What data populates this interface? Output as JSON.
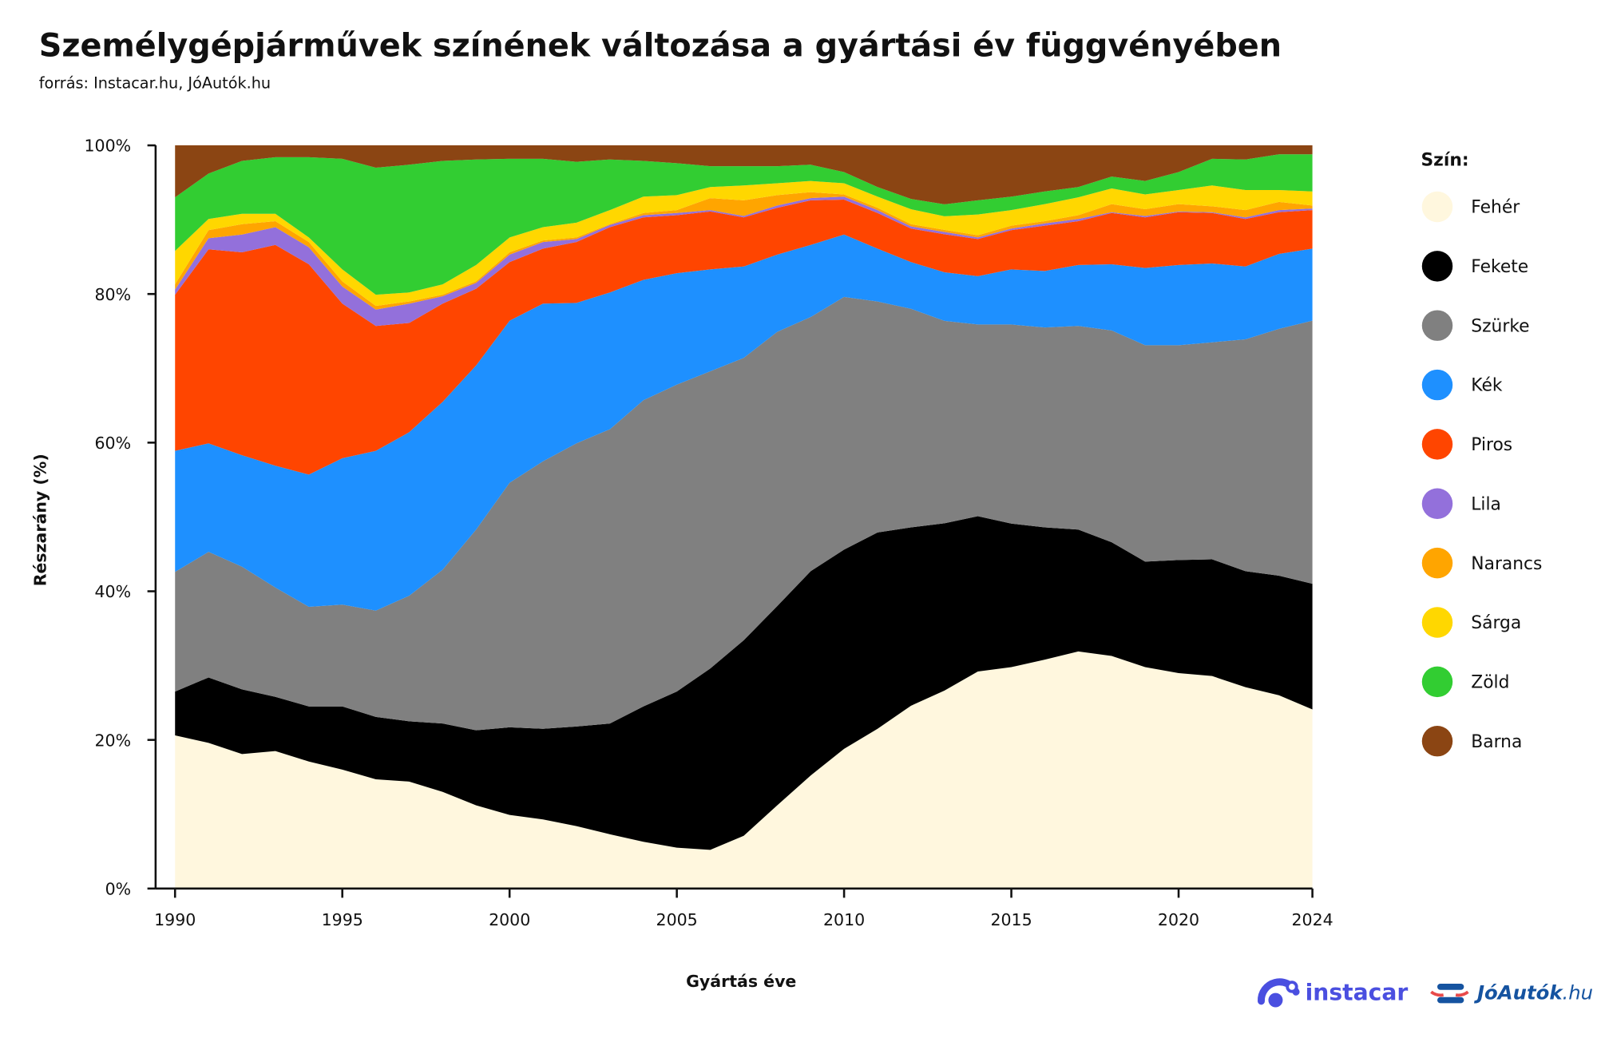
{
  "header": {
    "title": "Személygépjárművek színének változása a gyártási év függvényében",
    "source": "forrás: Instacar.hu, JóAutók.hu"
  },
  "logos": {
    "instacar": "instacar",
    "joautok": "JóAutók",
    "joautok_suffix": ".hu"
  },
  "chart_data": {
    "type": "area",
    "stacked": true,
    "normalized": true,
    "xlabel": "Gyártás éve",
    "ylabel": "Részarány (%)",
    "ylim": [
      0,
      100
    ],
    "yticks": [
      "0%",
      "20%",
      "40%",
      "60%",
      "80%",
      "100%"
    ],
    "xticks": [
      "1990",
      "1995",
      "2000",
      "2005",
      "2010",
      "2015",
      "2020",
      "2024"
    ],
    "legend_title": "Szín:",
    "legend_position": "right",
    "x": [
      1990,
      1991,
      1992,
      1993,
      1994,
      1995,
      1996,
      1997,
      1998,
      1999,
      2000,
      2001,
      2002,
      2003,
      2004,
      2005,
      2006,
      2007,
      2008,
      2009,
      2010,
      2011,
      2012,
      2013,
      2014,
      2015,
      2016,
      2017,
      2018,
      2019,
      2020,
      2021,
      2022,
      2023,
      2024
    ],
    "series": [
      {
        "name": "Fehér",
        "color": "#FFF7DE",
        "values": [
          20.6,
          19.6,
          18.1,
          18.5,
          17.1,
          16.0,
          14.7,
          14.4,
          13.0,
          11.2,
          9.9,
          9.3,
          8.4,
          7.3,
          6.3,
          5.5,
          5.2,
          7.1,
          11.2,
          15.2,
          18.8,
          21.5,
          24.6,
          26.5,
          29.2,
          29.8,
          30.8,
          31.9,
          31.3,
          29.8,
          29.0,
          28.6,
          27.1,
          26.0,
          24.1
        ]
      },
      {
        "name": "Fekete",
        "color": "#000000",
        "values": [
          5.9,
          8.8,
          8.7,
          7.3,
          7.4,
          8.5,
          8.4,
          8.1,
          9.2,
          10.1,
          11.8,
          12.2,
          13.4,
          14.9,
          18.2,
          21.0,
          24.4,
          26.3,
          26.8,
          27.5,
          26.8,
          26.4,
          24.0,
          22.4,
          20.9,
          19.3,
          17.8,
          16.4,
          15.3,
          14.2,
          15.2,
          15.7,
          15.6,
          16.1,
          16.9
        ]
      },
      {
        "name": "Szürke",
        "color": "#808080",
        "values": [
          16.1,
          16.9,
          16.5,
          14.7,
          13.4,
          13.7,
          14.3,
          16.9,
          20.7,
          27.0,
          32.9,
          36.0,
          38.1,
          39.6,
          41.2,
          41.3,
          40.0,
          38.0,
          36.9,
          34.2,
          34.0,
          31.1,
          29.4,
          27.1,
          25.8,
          26.8,
          26.9,
          27.4,
          28.5,
          29.1,
          28.9,
          29.2,
          31.2,
          33.2,
          35.4
        ]
      },
      {
        "name": "Kék",
        "color": "#1E90FF",
        "values": [
          16.3,
          14.6,
          15.0,
          16.4,
          17.8,
          19.7,
          21.5,
          22.0,
          22.6,
          22.1,
          21.8,
          21.2,
          18.9,
          18.4,
          16.2,
          15.0,
          13.7,
          12.3,
          10.4,
          9.7,
          8.4,
          7.1,
          6.3,
          6.5,
          6.5,
          7.4,
          7.6,
          8.2,
          8.9,
          10.4,
          10.8,
          10.6,
          9.8,
          10.1,
          9.7
        ]
      },
      {
        "name": "Piros",
        "color": "#FF4500",
        "values": [
          21.0,
          26.1,
          27.3,
          29.7,
          28.3,
          20.8,
          16.8,
          14.7,
          13.2,
          10.3,
          7.9,
          7.4,
          8.2,
          8.8,
          8.4,
          7.8,
          7.8,
          6.6,
          6.3,
          6.0,
          4.7,
          4.8,
          4.5,
          5.1,
          5.0,
          5.3,
          6.1,
          5.9,
          6.9,
          6.8,
          7.1,
          6.8,
          6.4,
          5.6,
          5.2
        ]
      },
      {
        "name": "Lila",
        "color": "#9370DB",
        "values": [
          0.7,
          1.5,
          2.4,
          2.4,
          2.3,
          2.3,
          2.2,
          2.6,
          1.0,
          0.8,
          1.0,
          0.9,
          0.4,
          0.3,
          0.3,
          0.3,
          0.2,
          0.2,
          0.3,
          0.3,
          0.4,
          0.4,
          0.3,
          0.3,
          0.2,
          0.2,
          0.3,
          0.3,
          0.1,
          0.2,
          0.1,
          0.1,
          0.2,
          0.3,
          0.2
        ]
      },
      {
        "name": "Narancs",
        "color": "#FFA500",
        "values": [
          0.7,
          1.1,
          1.4,
          0.8,
          0.7,
          0.7,
          0.5,
          0.3,
          0.2,
          0.2,
          0.3,
          0.2,
          0.2,
          0.1,
          0.3,
          0.4,
          1.6,
          2.1,
          1.4,
          0.8,
          0.3,
          0.3,
          0.3,
          0.3,
          0.3,
          0.4,
          0.3,
          0.5,
          1.1,
          0.9,
          1.0,
          0.8,
          1.0,
          1.1,
          0.4
        ]
      },
      {
        "name": "Sárga",
        "color": "#FFD700",
        "values": [
          4.5,
          1.5,
          1.4,
          1.0,
          0.6,
          1.6,
          1.5,
          1.2,
          1.4,
          2.2,
          2.0,
          1.8,
          2.0,
          1.9,
          2.2,
          2.0,
          1.5,
          2.0,
          1.6,
          1.5,
          1.5,
          1.5,
          2.0,
          1.8,
          2.8,
          2.1,
          2.3,
          2.4,
          2.1,
          2.0,
          1.9,
          2.8,
          2.7,
          1.6,
          1.9
        ]
      },
      {
        "name": "Zöld",
        "color": "#32CD32",
        "values": [
          7.2,
          6.1,
          7.1,
          7.6,
          10.8,
          14.9,
          17.1,
          17.2,
          16.6,
          14.2,
          10.6,
          9.2,
          8.2,
          6.8,
          4.8,
          4.3,
          2.8,
          2.6,
          2.3,
          2.2,
          1.5,
          1.3,
          1.4,
          1.6,
          1.9,
          1.8,
          1.7,
          1.4,
          1.6,
          1.8,
          2.4,
          3.6,
          4.1,
          4.8,
          5.0
        ]
      },
      {
        "name": "Barna",
        "color": "#8B4513",
        "values": [
          7.0,
          3.8,
          2.1,
          1.6,
          1.6,
          1.8,
          3.0,
          2.6,
          2.1,
          1.9,
          1.8,
          1.8,
          2.2,
          1.9,
          2.1,
          2.4,
          2.8,
          2.8,
          2.8,
          2.6,
          3.6,
          5.6,
          7.2,
          7.9,
          7.4,
          6.9,
          6.2,
          5.6,
          4.2,
          4.8,
          3.6,
          1.8,
          1.9,
          1.2,
          1.2
        ]
      }
    ]
  }
}
